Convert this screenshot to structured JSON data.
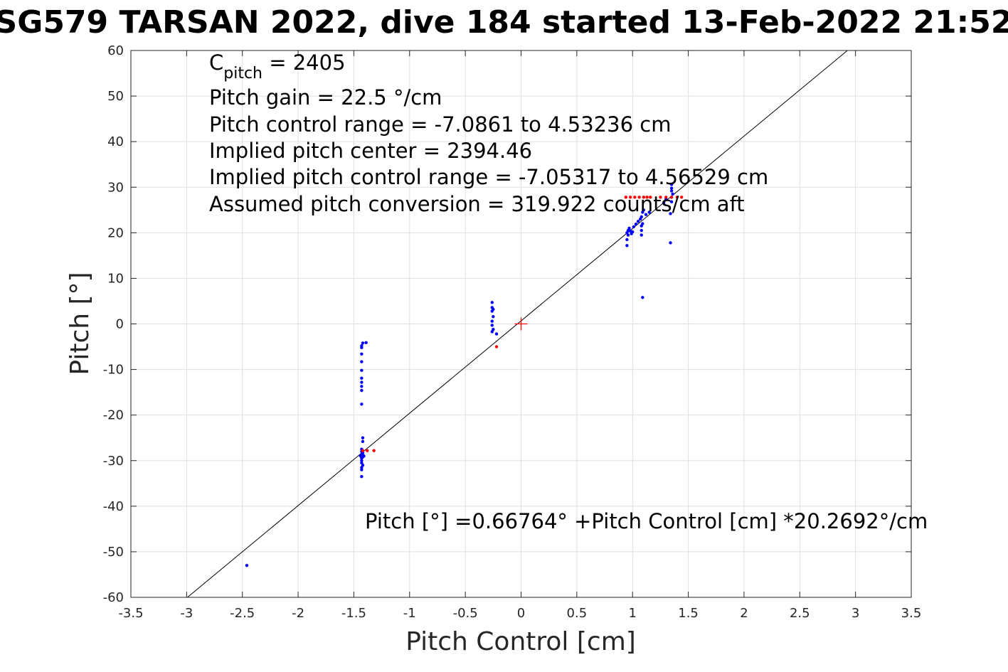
{
  "chart_data": {
    "type": "scatter",
    "title": "SG579 TARSAN 2022, dive 184 started 13-Feb-2022 21:52",
    "xlabel": "Pitch Control [cm]",
    "ylabel": "Pitch [°]",
    "xlim": [
      -3.5,
      3.5
    ],
    "ylim": [
      -60,
      60
    ],
    "xticks": [
      -3.5,
      -3,
      -2.5,
      -2,
      -1.5,
      -1,
      -0.5,
      0,
      0.5,
      1,
      1.5,
      2,
      2.5,
      3,
      3.5
    ],
    "yticks": [
      -60,
      -50,
      -40,
      -30,
      -20,
      -10,
      0,
      10,
      20,
      30,
      40,
      50,
      60
    ],
    "xtick_labels": [
      "-3.5",
      "-3",
      "-2.5",
      "-2",
      "-1.5",
      "-1",
      "-0.5",
      "0",
      "0.5",
      "1",
      "1.5",
      "2",
      "2.5",
      "3",
      "3.5"
    ],
    "ytick_labels": [
      "-60",
      "-50",
      "-40",
      "-30",
      "-20",
      "-10",
      "0",
      "10",
      "20",
      "30",
      "40",
      "50",
      "60"
    ],
    "grid": true,
    "legend": "none",
    "annotations": {
      "c_pitch_prefix": "C",
      "c_pitch_sub": "pitch",
      "c_pitch_suffix": " = 2405",
      "lines": [
        "Pitch gain = 22.5 °/cm",
        "Pitch control range = -7.0861 to 4.53236 cm",
        "Implied pitch center = 2394.46",
        "Implied pitch control range = -7.05317 to 4.56529 cm",
        "Assumed pitch conversion = 319.922 counts/cm aft"
      ],
      "fit_equation": "Pitch [°] =0.66764° +Pitch Control [cm] *20.2692°/cm"
    },
    "fit_line": {
      "intercept": 0.66764,
      "slope": 20.2692,
      "color": "#000000"
    },
    "center_marker": {
      "x": 0,
      "y": 0,
      "color": "#ff0000"
    },
    "series": [
      {
        "color": "#0000ff",
        "points": [
          [
            -2.46,
            -53
          ],
          [
            -1.42,
            -4.2
          ],
          [
            -1.39,
            -4.1
          ],
          [
            -1.43,
            -4.8
          ],
          [
            -1.43,
            -5.2
          ],
          [
            -1.43,
            -6.6
          ],
          [
            -1.43,
            -8.3
          ],
          [
            -1.43,
            -10.2
          ],
          [
            -1.43,
            -11.9
          ],
          [
            -1.43,
            -12.8
          ],
          [
            -1.43,
            -13.7
          ],
          [
            -1.43,
            -14.6
          ],
          [
            -1.43,
            -17.6
          ],
          [
            -1.42,
            -25
          ],
          [
            -1.42,
            -25.8
          ],
          [
            -1.43,
            -27.5
          ],
          [
            -1.43,
            -28
          ],
          [
            -1.42,
            -28.3
          ],
          [
            -1.43,
            -28.6
          ],
          [
            -1.42,
            -28.8
          ],
          [
            -1.44,
            -29
          ],
          [
            -1.42,
            -29.2
          ],
          [
            -1.43,
            -29.5
          ],
          [
            -1.41,
            -29
          ],
          [
            -1.43,
            -30
          ],
          [
            -1.43,
            -30.5
          ],
          [
            -1.42,
            -31
          ],
          [
            -1.43,
            -31.5
          ],
          [
            -1.43,
            -32
          ],
          [
            -1.43,
            -33.5
          ],
          [
            -0.26,
            4.7
          ],
          [
            -0.26,
            3.6
          ],
          [
            -0.25,
            3.2
          ],
          [
            -0.26,
            2.8
          ],
          [
            -0.25,
            1.6
          ],
          [
            -0.26,
            0.6
          ],
          [
            -0.26,
            -0.3
          ],
          [
            -0.25,
            -1.2
          ],
          [
            -0.26,
            -1.7
          ],
          [
            -0.22,
            -2.2
          ],
          [
            0.95,
            17.2
          ],
          [
            0.95,
            18.5
          ],
          [
            0.96,
            19.5
          ],
          [
            0.95,
            20
          ],
          [
            0.96,
            20.5
          ],
          [
            0.97,
            21
          ],
          [
            0.98,
            20.4
          ],
          [
            0.99,
            19.8
          ],
          [
            1.0,
            20.2
          ],
          [
            1.01,
            21.3
          ],
          [
            1.03,
            21.9
          ],
          [
            1.05,
            22.5
          ],
          [
            1.07,
            23
          ],
          [
            1.08,
            19.5
          ],
          [
            1.08,
            20.5
          ],
          [
            1.08,
            21.5
          ],
          [
            1.09,
            22
          ],
          [
            1.08,
            23.5
          ],
          [
            1.09,
            24.5
          ],
          [
            1.1,
            25
          ],
          [
            1.12,
            24
          ],
          [
            1.15,
            24.5
          ],
          [
            1.28,
            26.5
          ],
          [
            1.3,
            27.4
          ],
          [
            1.34,
            24.2
          ],
          [
            1.35,
            26.8
          ],
          [
            1.35,
            27.8
          ],
          [
            1.36,
            28.5
          ],
          [
            1.35,
            29.2
          ],
          [
            1.35,
            29.8
          ],
          [
            1.35,
            30.6
          ],
          [
            1.34,
            17.8
          ],
          [
            1.09,
            5.8
          ]
        ]
      },
      {
        "color": "#ff0000",
        "points": [
          [
            -1.42,
            -27.8
          ],
          [
            -1.38,
            -27.8
          ],
          [
            -1.32,
            -27.8
          ],
          [
            -0.22,
            -5
          ],
          [
            0.94,
            27.8
          ],
          [
            0.98,
            27.8
          ],
          [
            1.02,
            27.8
          ],
          [
            1.06,
            27.8
          ],
          [
            1.1,
            27.8
          ],
          [
            1.13,
            27.8
          ],
          [
            1.16,
            27.8
          ],
          [
            1.25,
            27.8
          ],
          [
            1.3,
            27.8
          ],
          [
            1.35,
            27.8
          ],
          [
            1.4,
            27.8
          ],
          [
            1.44,
            27.8
          ]
        ]
      }
    ]
  }
}
